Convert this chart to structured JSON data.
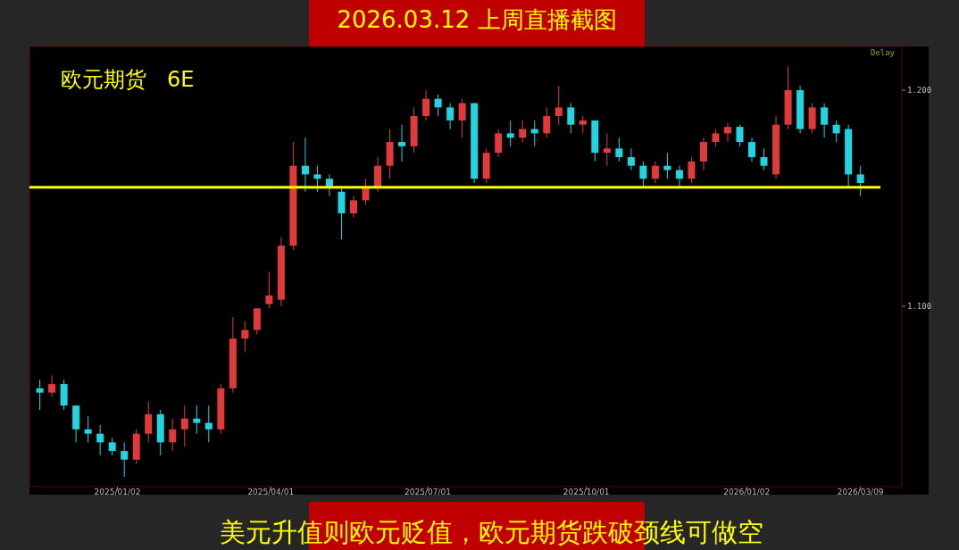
{
  "chart_data": {
    "type": "candlestick",
    "title": "2026.03.12 上周直播截图",
    "subtitle": "欧元期货   6E",
    "annotations": [
      "Delay",
      "美元升值则欧元贬值，欧元期货跌破颈线可做空"
    ],
    "x": [
      "2024-11-18",
      "2024-11-25",
      "2024-12-02",
      "2024-12-09",
      "2024-12-16",
      "2024-12-23",
      "2024-12-30",
      "2025-01-06",
      "2025-01-13",
      "2025-01-20",
      "2025-01-27",
      "2025-02-03",
      "2025-02-10",
      "2025-02-17",
      "2025-02-24",
      "2025-03-03",
      "2025-03-10",
      "2025-03-17",
      "2025-03-24",
      "2025-03-31",
      "2025-04-07",
      "2025-04-14",
      "2025-04-21",
      "2025-04-28",
      "2025-05-05",
      "2025-05-12",
      "2025-05-19",
      "2025-05-26",
      "2025-06-02",
      "2025-06-09",
      "2025-06-16",
      "2025-06-23",
      "2025-06-30",
      "2025-07-07",
      "2025-07-14",
      "2025-07-21",
      "2025-07-28",
      "2025-08-04",
      "2025-08-11",
      "2025-08-18",
      "2025-08-25",
      "2025-09-01",
      "2025-09-08",
      "2025-09-15",
      "2025-09-22",
      "2025-09-29",
      "2025-10-06",
      "2025-10-13",
      "2025-10-20",
      "2025-10-27",
      "2025-11-03",
      "2025-11-10",
      "2025-11-17",
      "2025-11-24",
      "2025-12-01",
      "2025-12-08",
      "2025-12-15",
      "2025-12-22",
      "2025-12-29",
      "2026-01-05",
      "2026-01-12",
      "2026-01-19",
      "2026-01-26",
      "2026-02-02",
      "2026-02-09",
      "2026-02-16",
      "2026-02-23",
      "2026-03-02",
      "2026-03-09"
    ],
    "ohlc": [
      [
        1.062,
        1.066,
        1.052,
        1.06
      ],
      [
        1.06,
        1.068,
        1.058,
        1.064
      ],
      [
        1.064,
        1.066,
        1.052,
        1.054
      ],
      [
        1.054,
        1.054,
        1.037,
        1.043
      ],
      [
        1.043,
        1.049,
        1.037,
        1.041
      ],
      [
        1.041,
        1.045,
        1.031,
        1.037
      ],
      [
        1.037,
        1.039,
        1.031,
        1.033
      ],
      [
        1.033,
        1.037,
        1.021,
        1.029
      ],
      [
        1.029,
        1.043,
        1.027,
        1.041
      ],
      [
        1.041,
        1.056,
        1.037,
        1.05
      ],
      [
        1.05,
        1.052,
        1.031,
        1.037
      ],
      [
        1.037,
        1.048,
        1.033,
        1.043
      ],
      [
        1.043,
        1.054,
        1.035,
        1.048
      ],
      [
        1.048,
        1.054,
        1.041,
        1.046
      ],
      [
        1.046,
        1.054,
        1.037,
        1.043
      ],
      [
        1.043,
        1.064,
        1.041,
        1.062
      ],
      [
        1.062,
        1.095,
        1.06,
        1.085
      ],
      [
        1.085,
        1.093,
        1.079,
        1.089
      ],
      [
        1.089,
        1.099,
        1.087,
        1.099
      ],
      [
        1.101,
        1.116,
        1.099,
        1.105
      ],
      [
        1.103,
        1.132,
        1.1,
        1.128
      ],
      [
        1.128,
        1.176,
        1.126,
        1.165
      ],
      [
        1.165,
        1.178,
        1.153,
        1.161
      ],
      [
        1.161,
        1.165,
        1.153,
        1.159
      ],
      [
        1.159,
        1.161,
        1.151,
        1.155
      ],
      [
        1.153,
        1.155,
        1.131,
        1.143
      ],
      [
        1.143,
        1.151,
        1.141,
        1.149
      ],
      [
        1.149,
        1.159,
        1.147,
        1.155
      ],
      [
        1.155,
        1.169,
        1.153,
        1.165
      ],
      [
        1.165,
        1.182,
        1.159,
        1.176
      ],
      [
        1.176,
        1.184,
        1.167,
        1.174
      ],
      [
        1.174,
        1.192,
        1.171,
        1.188
      ],
      [
        1.188,
        1.2,
        1.186,
        1.196
      ],
      [
        1.196,
        1.198,
        1.188,
        1.192
      ],
      [
        1.192,
        1.194,
        1.182,
        1.186
      ],
      [
        1.186,
        1.196,
        1.178,
        1.194
      ],
      [
        1.194,
        1.194,
        1.157,
        1.159
      ],
      [
        1.159,
        1.173,
        1.157,
        1.171
      ],
      [
        1.171,
        1.182,
        1.169,
        1.18
      ],
      [
        1.18,
        1.186,
        1.174,
        1.178
      ],
      [
        1.178,
        1.186,
        1.176,
        1.182
      ],
      [
        1.182,
        1.186,
        1.174,
        1.18
      ],
      [
        1.18,
        1.192,
        1.178,
        1.188
      ],
      [
        1.188,
        1.202,
        1.184,
        1.192
      ],
      [
        1.192,
        1.194,
        1.18,
        1.184
      ],
      [
        1.184,
        1.188,
        1.18,
        1.186
      ],
      [
        1.186,
        1.186,
        1.167,
        1.171
      ],
      [
        1.171,
        1.18,
        1.165,
        1.173
      ],
      [
        1.173,
        1.178,
        1.167,
        1.169
      ],
      [
        1.169,
        1.173,
        1.163,
        1.165
      ],
      [
        1.165,
        1.167,
        1.155,
        1.159
      ],
      [
        1.159,
        1.167,
        1.157,
        1.165
      ],
      [
        1.165,
        1.171,
        1.159,
        1.163
      ],
      [
        1.163,
        1.165,
        1.155,
        1.159
      ],
      [
        1.159,
        1.169,
        1.157,
        1.167
      ],
      [
        1.167,
        1.178,
        1.163,
        1.176
      ],
      [
        1.176,
        1.182,
        1.174,
        1.18
      ],
      [
        1.18,
        1.185,
        1.176,
        1.183
      ],
      [
        1.183,
        1.184,
        1.174,
        1.176
      ],
      [
        1.176,
        1.178,
        1.167,
        1.169
      ],
      [
        1.169,
        1.173,
        1.163,
        1.165
      ],
      [
        1.161,
        1.188,
        1.159,
        1.184
      ],
      [
        1.184,
        1.211,
        1.182,
        1.2
      ],
      [
        1.2,
        1.202,
        1.18,
        1.182
      ],
      [
        1.182,
        1.194,
        1.18,
        1.192
      ],
      [
        1.192,
        1.194,
        1.178,
        1.184
      ],
      [
        1.184,
        1.186,
        1.176,
        1.18
      ],
      [
        1.182,
        1.184,
        1.155,
        1.161
      ],
      [
        1.161,
        1.165,
        1.151,
        1.157
      ]
    ],
    "colors": [
      "#22d3e0",
      "#e03a3a",
      "#22d3e0",
      "#22d3e0",
      "#22d3e0",
      "#22d3e0",
      "#22d3e0",
      "#22d3e0",
      "#e03a3a",
      "#e03a3a",
      "#22d3e0",
      "#e03a3a",
      "#e03a3a",
      "#22d3e0",
      "#22d3e0",
      "#e03a3a",
      "#e03a3a",
      "#e03a3a",
      "#e03a3a",
      "#e03a3a",
      "#e03a3a",
      "#e03a3a",
      "#22d3e0",
      "#22d3e0",
      "#22d3e0",
      "#22d3e0",
      "#e03a3a",
      "#e03a3a",
      "#e03a3a",
      "#e03a3a",
      "#22d3e0",
      "#e03a3a",
      "#e03a3a",
      "#22d3e0",
      "#22d3e0",
      "#e03a3a",
      "#22d3e0",
      "#e03a3a",
      "#e03a3a",
      "#22d3e0",
      "#e03a3a",
      "#22d3e0",
      "#e03a3a",
      "#e03a3a",
      "#22d3e0",
      "#e03a3a",
      "#22d3e0",
      "#e03a3a",
      "#22d3e0",
      "#22d3e0",
      "#22d3e0",
      "#e03a3a",
      "#22d3e0",
      "#22d3e0",
      "#e03a3a",
      "#e03a3a",
      "#e03a3a",
      "#e03a3a",
      "#22d3e0",
      "#22d3e0",
      "#22d3e0",
      "#e03a3a",
      "#e03a3a",
      "#22d3e0",
      "#e03a3a",
      "#22d3e0",
      "#22d3e0",
      "#22d3e0",
      "#22d3e0"
    ],
    "xlim": [
      "2024-11-12",
      "2026-04-02"
    ],
    "xticks": [
      {
        "value": "2025-01-02",
        "label": "2025/01/02"
      },
      {
        "value": "2025-04-01",
        "label": "2025/04/01"
      },
      {
        "value": "2025-07-01",
        "label": "2025/07/01"
      },
      {
        "value": "2025-10-01",
        "label": "2025/10/01"
      },
      {
        "value": "2026-01-02",
        "label": "2026/01/02"
      },
      {
        "value": "2026-03-09",
        "label": "2026/03/09"
      }
    ],
    "ylim": [
      1.0165,
      1.219
    ],
    "yticks": [
      {
        "value": 1.2,
        "label": "1.200"
      },
      {
        "value": 1.1,
        "label": "1.100"
      }
    ],
    "ref_lines": [
      {
        "axis": "y",
        "value": 1.155,
        "color": "#ffff00"
      }
    ]
  }
}
